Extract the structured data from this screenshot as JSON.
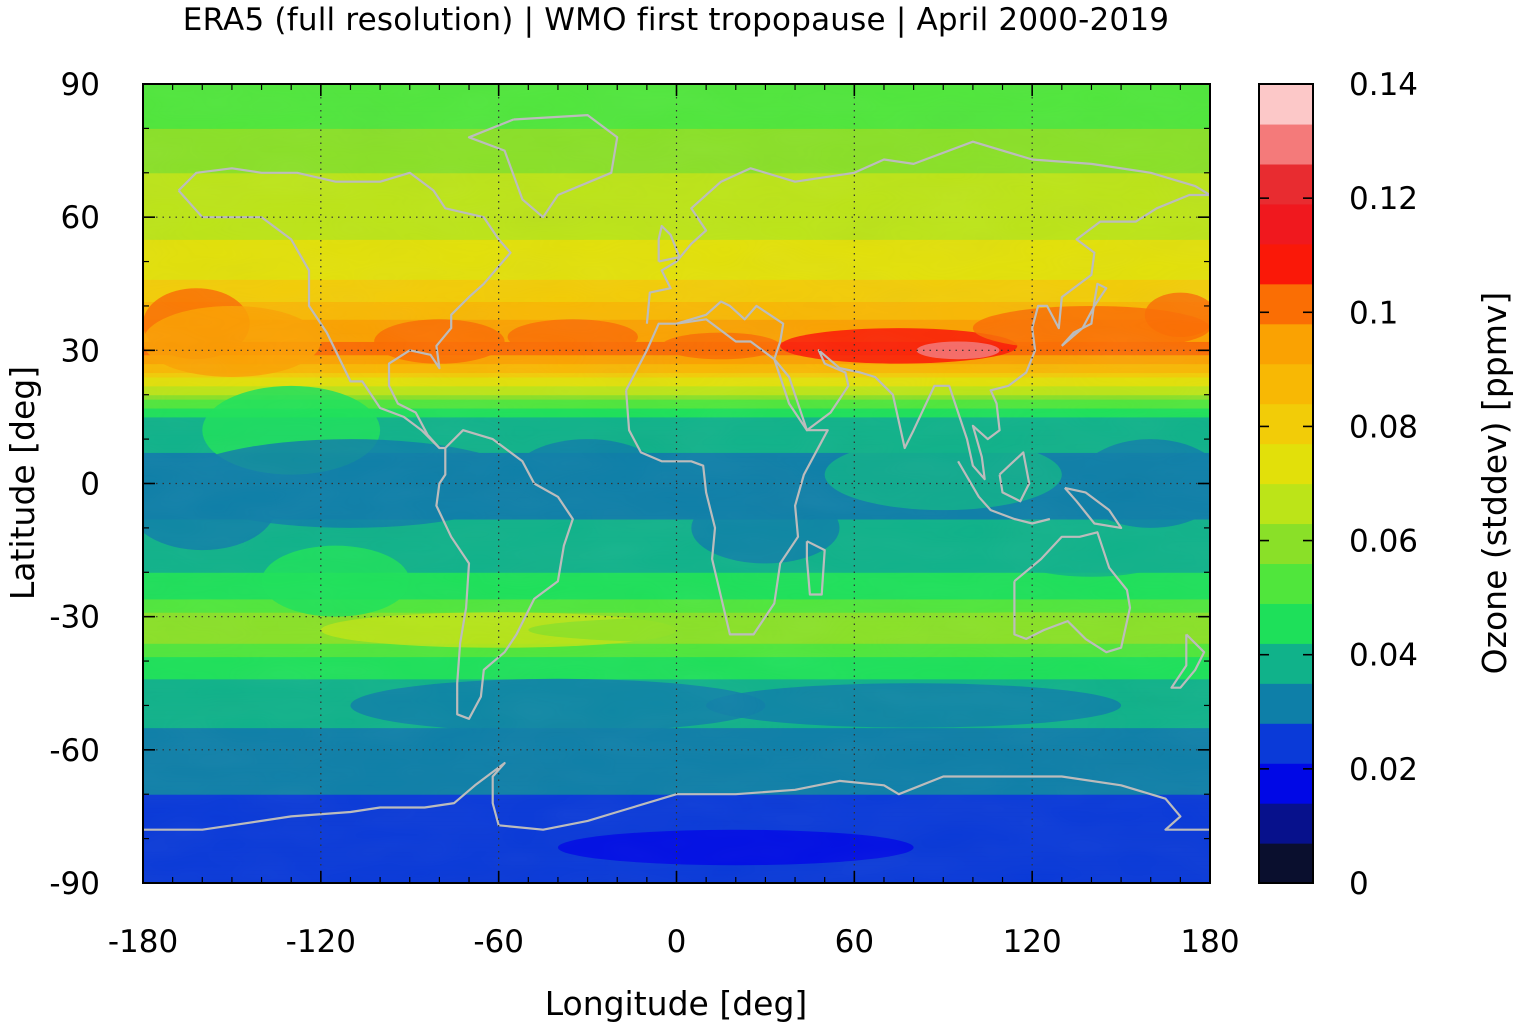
{
  "chart_data": {
    "type": "heatmap",
    "title": "ERA5 (full resolution) | WMO first tropopause | April 2000-2019",
    "xlabel": "Longitude [deg]",
    "ylabel": "Latitude [deg]",
    "xlim": [
      -180,
      180
    ],
    "ylim": [
      -90,
      90
    ],
    "xticks": [
      -180,
      -120,
      -60,
      0,
      60,
      120,
      180
    ],
    "yticks": [
      -90,
      -60,
      -30,
      0,
      30,
      60,
      90
    ],
    "xtick_labels": [
      "-180",
      "-120",
      "-60",
      "0",
      "60",
      "120",
      "180"
    ],
    "ytick_labels": [
      "-90",
      "-60",
      "-30",
      "0",
      "30",
      "60",
      "90"
    ],
    "grid": true,
    "colorbar": {
      "label": "Ozone (stddev) [ppmv]",
      "range": [
        0,
        0.14
      ],
      "ticks": [
        0,
        0.02,
        0.04,
        0.06,
        0.08,
        0.1,
        0.12,
        0.14
      ],
      "tick_labels": [
        "0",
        "0.02",
        "0.04",
        "0.06",
        "0.08",
        "0.1",
        "0.12",
        "0.14"
      ],
      "levels": 20,
      "colors": [
        "#0a0f2e",
        "#07118c",
        "#0008e6",
        "#0a3ad8",
        "#0e7fa8",
        "#10b28a",
        "#1ee05a",
        "#50e63c",
        "#8ae028",
        "#bce418",
        "#e2e00a",
        "#f2cc08",
        "#f8b804",
        "#faa202",
        "#fa6e04",
        "#fa1808",
        "#f0181e",
        "#e82c30",
        "#f47a7a",
        "#fcc8c8"
      ]
    },
    "zonal_profile": {
      "description_free": true,
      "lat": [
        -90,
        -80,
        -70,
        -60,
        -50,
        -40,
        -33,
        -25,
        -15,
        -5,
        5,
        15,
        22,
        30,
        40,
        50,
        60,
        70,
        80,
        90
      ],
      "value": [
        0.024,
        0.024,
        0.028,
        0.034,
        0.036,
        0.046,
        0.063,
        0.048,
        0.037,
        0.034,
        0.034,
        0.04,
        0.07,
        0.102,
        0.086,
        0.072,
        0.068,
        0.063,
        0.056,
        0.055
      ]
    }
  },
  "colors": {
    "grid": "#333333",
    "coastline": "#bcbcbc",
    "frame": "#000000"
  }
}
